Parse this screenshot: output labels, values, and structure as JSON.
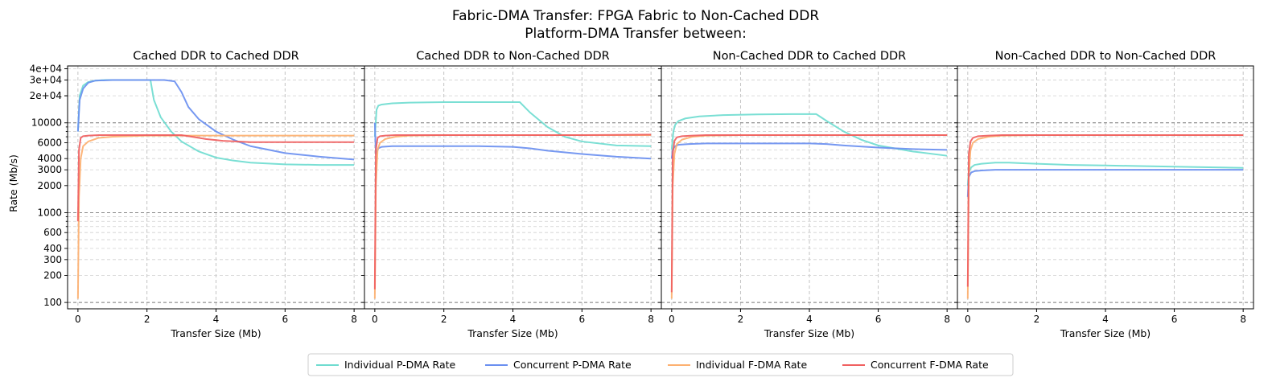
{
  "figure": {
    "title_line1": "Fabric-DMA Transfer: FPGA Fabric to Non-Cached DDR",
    "title_line2": "Platform-DMA Transfer between:",
    "ylabel": "Rate (Mb/s)",
    "xlabel": "Transfer Size (Mb)",
    "x_ticks": [
      0,
      2,
      4,
      6,
      8
    ],
    "y_ticks": [
      {
        "value": 100,
        "label": "100"
      },
      {
        "value": 200,
        "label": "200"
      },
      {
        "value": 300,
        "label": "300"
      },
      {
        "value": 400,
        "label": "400"
      },
      {
        "value": 600,
        "label": "600"
      },
      {
        "value": 1000,
        "label": "1000"
      },
      {
        "value": 2000,
        "label": "2000"
      },
      {
        "value": 3000,
        "label": "3000"
      },
      {
        "value": 4000,
        "label": "4000"
      },
      {
        "value": 6000,
        "label": "6000"
      },
      {
        "value": 10000,
        "label": "10000"
      },
      {
        "value": 20000,
        "label": "2e+04"
      },
      {
        "value": 30000,
        "label": "3e+04"
      },
      {
        "value": 40000,
        "label": "4e+04"
      }
    ],
    "legend": [
      {
        "key": "ip",
        "label": "Individual P-DMA Rate",
        "color": "#6fdcd0"
      },
      {
        "key": "cp",
        "label": "Concurrent P-DMA Rate",
        "color": "#6a8ff0"
      },
      {
        "key": "if",
        "label": "Individual F-DMA Rate",
        "color": "#fdb070"
      },
      {
        "key": "cf",
        "label": "Concurrent F-DMA Rate",
        "color": "#f06060"
      }
    ]
  },
  "chart_data": [
    {
      "type": "line",
      "title": "Cached DDR to Cached DDR",
      "xlabel": "Transfer Size (Mb)",
      "ylabel": "Rate (Mb/s)",
      "xlim": [
        -0.3,
        8.3
      ],
      "ylim": [
        85,
        43000
      ],
      "yscale": "log",
      "grid": true,
      "series": [
        {
          "name": "Individual P-DMA Rate",
          "x": [
            0.0,
            0.05,
            0.15,
            0.3,
            0.5,
            0.8,
            1.2,
            1.6,
            2.0,
            2.1,
            2.2,
            2.4,
            2.7,
            3.0,
            3.5,
            4.0,
            4.5,
            5.0,
            6.0,
            7.0,
            8.0
          ],
          "y": [
            8000,
            20000,
            26000,
            28500,
            29500,
            30000,
            30000,
            30000,
            30000,
            30000,
            18000,
            11500,
            8000,
            6200,
            4800,
            4100,
            3800,
            3600,
            3450,
            3400,
            3400
          ]
        },
        {
          "name": "Concurrent P-DMA Rate",
          "x": [
            0.0,
            0.05,
            0.15,
            0.3,
            0.5,
            1.0,
            1.5,
            2.0,
            2.5,
            2.8,
            3.0,
            3.2,
            3.5,
            4.0,
            4.5,
            5.0,
            6.0,
            7.0,
            8.0
          ],
          "y": [
            8000,
            18000,
            24000,
            28000,
            29500,
            30000,
            30000,
            30000,
            30000,
            29000,
            22000,
            15000,
            11000,
            8000,
            6500,
            5500,
            4600,
            4200,
            3900
          ]
        },
        {
          "name": "Individual F-DMA Rate",
          "x": [
            0.0,
            0.03,
            0.08,
            0.15,
            0.3,
            0.6,
            1.0,
            2.0,
            3.0,
            4.0,
            5.0,
            6.0,
            7.0,
            8.0
          ],
          "y": [
            110,
            1500,
            4000,
            5500,
            6200,
            6800,
            7000,
            7200,
            7200,
            7200,
            7200,
            7200,
            7200,
            7200
          ]
        },
        {
          "name": "Concurrent F-DMA Rate",
          "x": [
            0.0,
            0.03,
            0.08,
            0.15,
            0.3,
            0.6,
            1.0,
            2.0,
            3.0,
            3.3,
            3.7,
            4.2,
            5.0,
            6.0,
            7.0,
            8.0
          ],
          "y": [
            800,
            5000,
            6800,
            7100,
            7200,
            7300,
            7300,
            7300,
            7300,
            7000,
            6600,
            6300,
            6100,
            6100,
            6100,
            6100
          ]
        }
      ]
    },
    {
      "type": "line",
      "title": "Cached DDR to Non-Cached DDR",
      "xlabel": "Transfer Size (Mb)",
      "ylim": [
        85,
        43000
      ],
      "yscale": "log",
      "grid": true,
      "series": [
        {
          "name": "Individual P-DMA Rate",
          "x": [
            0.0,
            0.05,
            0.1,
            0.2,
            0.5,
            1.0,
            2.0,
            3.0,
            4.0,
            4.2,
            4.5,
            5.0,
            5.5,
            6.0,
            7.0,
            8.0
          ],
          "y": [
            7000,
            14000,
            15500,
            16000,
            16500,
            16800,
            17000,
            17000,
            17000,
            17000,
            13000,
            9000,
            7000,
            6200,
            5600,
            5500
          ]
        },
        {
          "name": "Concurrent P-DMA Rate",
          "x": [
            0.0,
            0.03,
            0.1,
            0.2,
            0.5,
            1.0,
            2.0,
            3.0,
            4.0,
            4.5,
            5.0,
            6.0,
            7.0,
            8.0
          ],
          "y": [
            10000,
            4500,
            5200,
            5400,
            5500,
            5500,
            5500,
            5500,
            5400,
            5200,
            4900,
            4500,
            4200,
            4000
          ]
        },
        {
          "name": "Individual F-DMA Rate",
          "x": [
            0.0,
            0.03,
            0.08,
            0.15,
            0.3,
            0.6,
            1.0,
            2.0,
            4.0,
            6.0,
            8.0
          ],
          "y": [
            110,
            2000,
            5000,
            6000,
            6600,
            7000,
            7200,
            7300,
            7300,
            7300,
            7300
          ]
        },
        {
          "name": "Concurrent F-DMA Rate",
          "x": [
            0.0,
            0.03,
            0.08,
            0.15,
            0.3,
            0.6,
            1.0,
            2.0,
            4.0,
            6.0,
            8.0
          ],
          "y": [
            140,
            5000,
            6800,
            7100,
            7200,
            7300,
            7300,
            7300,
            7300,
            7300,
            7400
          ]
        }
      ]
    },
    {
      "type": "line",
      "title": "Non-Cached DDR to Cached DDR",
      "xlabel": "Transfer Size (Mb)",
      "ylim": [
        85,
        43000
      ],
      "yscale": "log",
      "grid": true,
      "series": [
        {
          "name": "Individual P-DMA Rate",
          "x": [
            0.0,
            0.05,
            0.1,
            0.2,
            0.4,
            0.8,
            1.5,
            2.5,
            3.5,
            4.0,
            4.2,
            4.5,
            5.0,
            5.5,
            6.0,
            7.0,
            8.0
          ],
          "y": [
            5000,
            8000,
            9500,
            10500,
            11200,
            11800,
            12200,
            12400,
            12500,
            12500,
            12500,
            10500,
            8000,
            6500,
            5600,
            4800,
            4300
          ]
        },
        {
          "name": "Concurrent P-DMA Rate",
          "x": [
            0.0,
            0.03,
            0.1,
            0.2,
            0.5,
            1.0,
            2.0,
            3.0,
            4.0,
            4.5,
            5.0,
            6.0,
            7.0,
            8.0
          ],
          "y": [
            4000,
            5000,
            5500,
            5700,
            5800,
            5900,
            5900,
            5900,
            5900,
            5800,
            5600,
            5300,
            5100,
            5000
          ]
        },
        {
          "name": "Individual F-DMA Rate",
          "x": [
            0.0,
            0.03,
            0.08,
            0.15,
            0.3,
            0.6,
            1.0,
            2.0,
            4.0,
            6.0,
            8.0
          ],
          "y": [
            110,
            2000,
            4500,
            5800,
            6500,
            7000,
            7200,
            7300,
            7300,
            7300,
            7300
          ]
        },
        {
          "name": "Concurrent F-DMA Rate",
          "x": [
            0.0,
            0.03,
            0.08,
            0.15,
            0.3,
            0.6,
            1.0,
            2.0,
            4.0,
            6.0,
            8.0
          ],
          "y": [
            130,
            4500,
            6300,
            6900,
            7100,
            7200,
            7300,
            7300,
            7300,
            7300,
            7300
          ]
        }
      ]
    },
    {
      "type": "line",
      "title": "Non-Cached DDR to Non-Cached DDR",
      "xlabel": "Transfer Size (Mb)",
      "ylim": [
        85,
        43000
      ],
      "yscale": "log",
      "grid": true,
      "series": [
        {
          "name": "Individual P-DMA Rate",
          "x": [
            0.0,
            0.03,
            0.1,
            0.2,
            0.4,
            0.8,
            1.2,
            1.6,
            2.0,
            3.0,
            4.0,
            5.0,
            6.0,
            7.0,
            8.0
          ],
          "y": [
            2000,
            2800,
            3200,
            3400,
            3500,
            3600,
            3600,
            3550,
            3500,
            3400,
            3350,
            3300,
            3250,
            3200,
            3150
          ]
        },
        {
          "name": "Concurrent P-DMA Rate",
          "x": [
            0.0,
            0.03,
            0.1,
            0.2,
            0.4,
            0.8,
            1.2,
            2.0,
            3.0,
            4.0,
            5.0,
            6.0,
            7.0,
            8.0
          ],
          "y": [
            1500,
            2500,
            2800,
            2900,
            2950,
            3000,
            3000,
            3000,
            3000,
            3000,
            3000,
            3000,
            3000,
            3000
          ]
        },
        {
          "name": "Individual F-DMA Rate",
          "x": [
            0.0,
            0.03,
            0.08,
            0.15,
            0.3,
            0.6,
            1.0,
            2.0,
            4.0,
            6.0,
            8.0
          ],
          "y": [
            110,
            2500,
            5000,
            6000,
            6600,
            7000,
            7200,
            7300,
            7300,
            7300,
            7300
          ]
        },
        {
          "name": "Concurrent F-DMA Rate",
          "x": [
            0.0,
            0.03,
            0.08,
            0.15,
            0.3,
            0.6,
            1.0,
            2.0,
            4.0,
            6.0,
            8.0
          ],
          "y": [
            150,
            4500,
            6200,
            6800,
            7100,
            7200,
            7300,
            7300,
            7300,
            7300,
            7300
          ]
        }
      ]
    }
  ]
}
